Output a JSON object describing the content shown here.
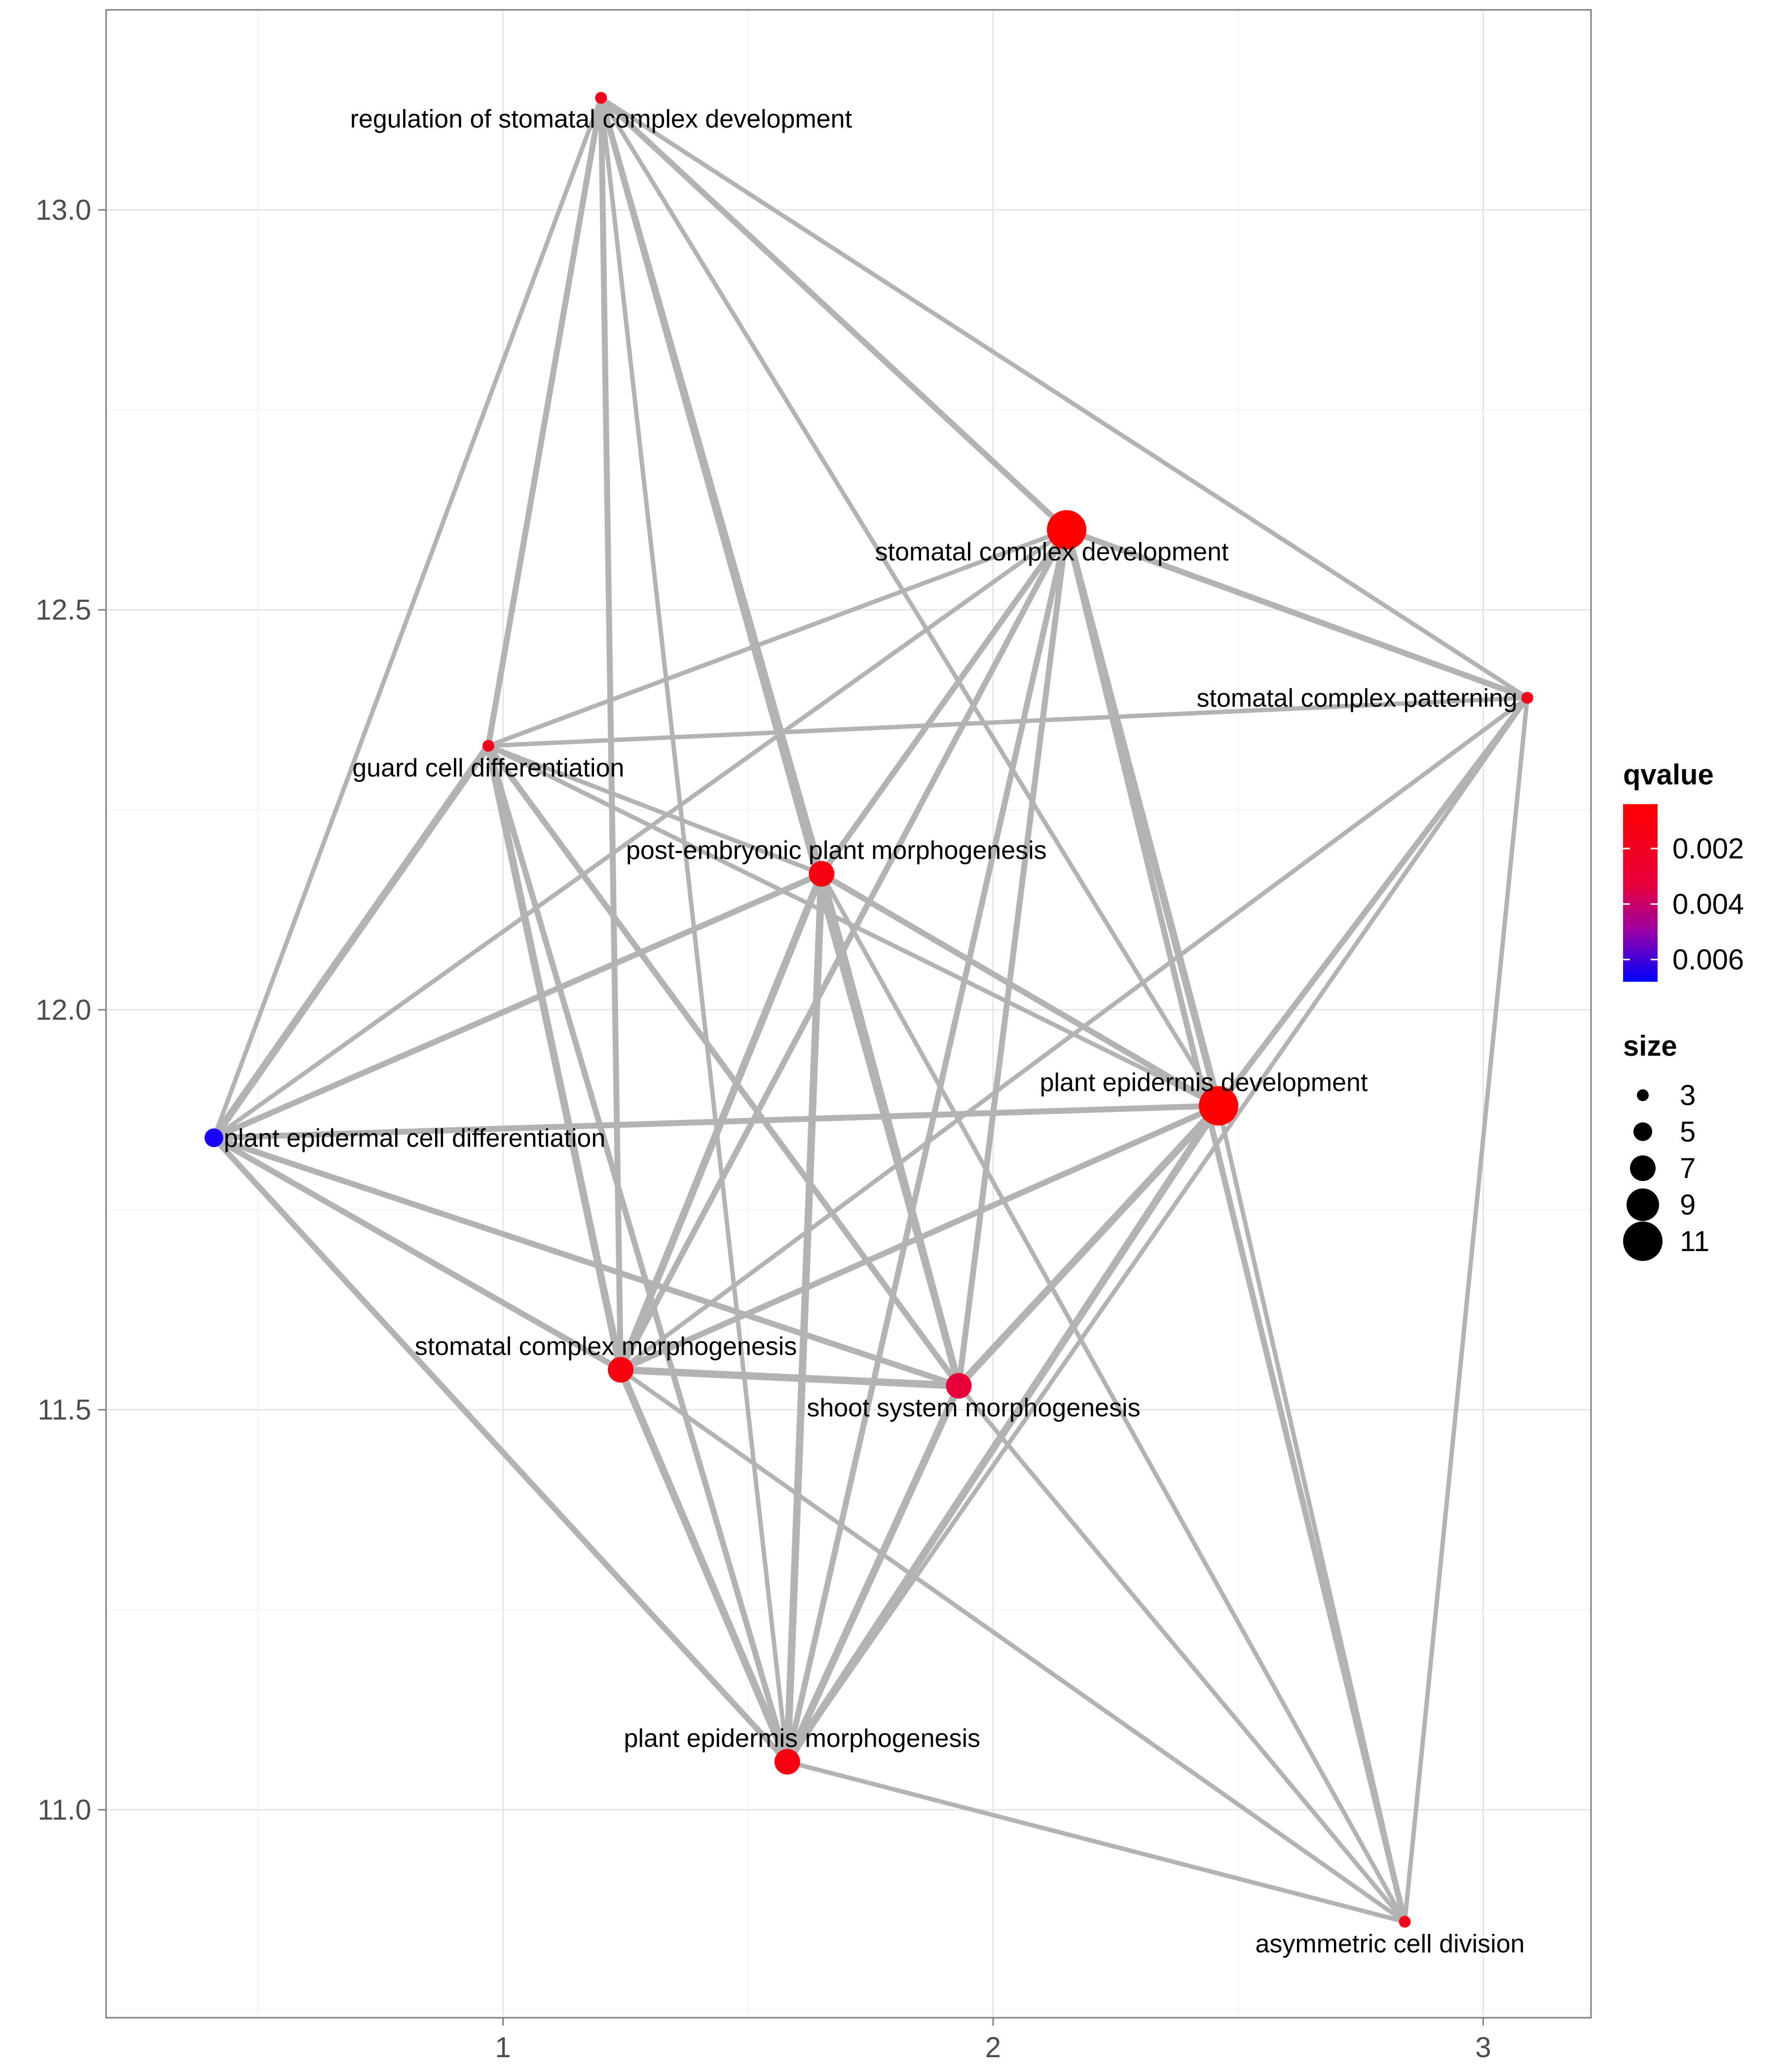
{
  "chart_data": {
    "type": "scatter",
    "subtype": "network",
    "title": "",
    "xlabel": "",
    "ylabel": "",
    "xlim": [
      0.19,
      3.22
    ],
    "ylim": [
      10.74,
      13.25
    ],
    "x_ticks": [
      1,
      2,
      3
    ],
    "x_tick_labels": [
      "1",
      "2",
      "3"
    ],
    "y_ticks": [
      11.0,
      11.5,
      12.0,
      12.5,
      13.0
    ],
    "y_tick_labels": [
      "11.0",
      "11.5",
      "12.0",
      "12.5",
      "13.0"
    ],
    "grid": true,
    "edge_color": "#b3b3b3",
    "nodes": [
      {
        "label": "regulation of stomatal complex development",
        "x": 1.2,
        "y": 13.14,
        "size": 3,
        "qvalue": 0.0008,
        "color": "#f5001a"
      },
      {
        "label": "stomatal complex development",
        "x": 2.15,
        "y": 12.6,
        "size": 11,
        "qvalue": 0.0004,
        "color": "#ff0000"
      },
      {
        "label": "stomatal complex patterning",
        "x": 3.09,
        "y": 12.39,
        "size": 3,
        "qvalue": 0.0008,
        "color": "#f5001a"
      },
      {
        "label": "guard cell differentiation",
        "x": 0.97,
        "y": 12.33,
        "size": 3,
        "qvalue": 0.0008,
        "color": "#f5001a"
      },
      {
        "label": "post-embryonic plant morphogenesis",
        "x": 1.65,
        "y": 12.17,
        "size": 7,
        "qvalue": 0.0006,
        "color": "#f80010"
      },
      {
        "label": "plant epidermis development",
        "x": 2.46,
        "y": 11.88,
        "size": 11,
        "qvalue": 0.0004,
        "color": "#ff0000"
      },
      {
        "label": "plant epidermal cell differentiation",
        "x": 0.41,
        "y": 11.84,
        "size": 5,
        "qvalue": 0.0068,
        "color": "#1a00ff"
      },
      {
        "label": "stomatal complex morphogenesis",
        "x": 1.24,
        "y": 11.55,
        "size": 7,
        "qvalue": 0.0006,
        "color": "#f80010"
      },
      {
        "label": "shoot system morphogenesis",
        "x": 1.93,
        "y": 11.53,
        "size": 7,
        "qvalue": 0.0012,
        "color": "#e8003a"
      },
      {
        "label": "plant epidermis morphogenesis",
        "x": 1.58,
        "y": 11.06,
        "size": 7,
        "qvalue": 0.0006,
        "color": "#f80010"
      },
      {
        "label": "asymmetric cell division",
        "x": 2.84,
        "y": 10.86,
        "size": 3,
        "qvalue": 0.0008,
        "color": "#f5001a"
      }
    ],
    "edges": [
      {
        "source": 0,
        "target": 1,
        "weight": 2
      },
      {
        "source": 0,
        "target": 2,
        "weight": 1
      },
      {
        "source": 0,
        "target": 3,
        "weight": 2
      },
      {
        "source": 0,
        "target": 4,
        "weight": 2
      },
      {
        "source": 0,
        "target": 5,
        "weight": 1
      },
      {
        "source": 0,
        "target": 6,
        "weight": 1
      },
      {
        "source": 0,
        "target": 7,
        "weight": 2
      },
      {
        "source": 0,
        "target": 8,
        "weight": 2
      },
      {
        "source": 0,
        "target": 9,
        "weight": 1
      },
      {
        "source": 1,
        "target": 2,
        "weight": 2
      },
      {
        "source": 1,
        "target": 3,
        "weight": 1
      },
      {
        "source": 1,
        "target": 4,
        "weight": 2
      },
      {
        "source": 1,
        "target": 5,
        "weight": 3
      },
      {
        "source": 1,
        "target": 6,
        "weight": 1
      },
      {
        "source": 1,
        "target": 7,
        "weight": 2
      },
      {
        "source": 1,
        "target": 8,
        "weight": 2
      },
      {
        "source": 1,
        "target": 9,
        "weight": 2
      },
      {
        "source": 1,
        "target": 10,
        "weight": 2
      },
      {
        "source": 2,
        "target": 3,
        "weight": 1
      },
      {
        "source": 2,
        "target": 5,
        "weight": 2
      },
      {
        "source": 2,
        "target": 7,
        "weight": 1
      },
      {
        "source": 2,
        "target": 9,
        "weight": 1
      },
      {
        "source": 2,
        "target": 10,
        "weight": 1
      },
      {
        "source": 3,
        "target": 4,
        "weight": 1
      },
      {
        "source": 3,
        "target": 5,
        "weight": 1
      },
      {
        "source": 3,
        "target": 6,
        "weight": 3
      },
      {
        "source": 3,
        "target": 7,
        "weight": 3
      },
      {
        "source": 3,
        "target": 8,
        "weight": 2
      },
      {
        "source": 3,
        "target": 9,
        "weight": 2
      },
      {
        "source": 4,
        "target": 5,
        "weight": 2
      },
      {
        "source": 4,
        "target": 6,
        "weight": 2
      },
      {
        "source": 4,
        "target": 7,
        "weight": 3
      },
      {
        "source": 4,
        "target": 8,
        "weight": 3
      },
      {
        "source": 4,
        "target": 9,
        "weight": 3
      },
      {
        "source": 4,
        "target": 10,
        "weight": 1
      },
      {
        "source": 5,
        "target": 6,
        "weight": 2
      },
      {
        "source": 5,
        "target": 7,
        "weight": 2
      },
      {
        "source": 5,
        "target": 8,
        "weight": 3
      },
      {
        "source": 5,
        "target": 9,
        "weight": 3
      },
      {
        "source": 5,
        "target": 10,
        "weight": 1
      },
      {
        "source": 6,
        "target": 7,
        "weight": 2
      },
      {
        "source": 6,
        "target": 8,
        "weight": 2
      },
      {
        "source": 6,
        "target": 9,
        "weight": 2
      },
      {
        "source": 7,
        "target": 8,
        "weight": 3
      },
      {
        "source": 7,
        "target": 9,
        "weight": 3
      },
      {
        "source": 7,
        "target": 10,
        "weight": 1
      },
      {
        "source": 8,
        "target": 9,
        "weight": 3
      },
      {
        "source": 8,
        "target": 10,
        "weight": 1
      },
      {
        "source": 9,
        "target": 10,
        "weight": 1
      }
    ],
    "legend": {
      "placement": "right",
      "color_title": "qvalue",
      "color_labels": [
        "0.002",
        "0.004",
        "0.006"
      ],
      "color_scale_low": "#ff0000",
      "color_scale_high": "#0000ff",
      "color_range": [
        0.0004,
        0.0068
      ],
      "size_title": "size",
      "size_labels": [
        "3",
        "5",
        "7",
        "9",
        "11"
      ]
    }
  }
}
